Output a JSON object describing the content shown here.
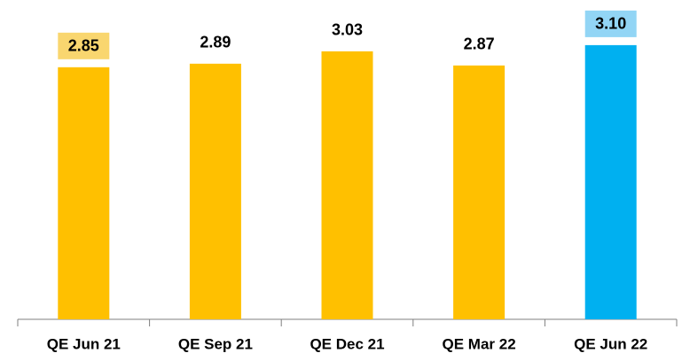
{
  "chart_data": {
    "type": "bar",
    "categories": [
      "QE Jun 21",
      "QE Sep 21",
      "QE Dec 21",
      "QE Mar 22",
      "QE Jun 22"
    ],
    "values": [
      2.85,
      2.89,
      3.03,
      2.87,
      3.1
    ],
    "value_labels": [
      "2.85",
      "2.89",
      "3.03",
      "2.87",
      "3.10"
    ],
    "colors": [
      "#ffc000",
      "#ffc000",
      "#ffc000",
      "#ffc000",
      "#00b0f0"
    ],
    "label_backgrounds": [
      "#f9d66f",
      null,
      null,
      null,
      "#92d5f5"
    ],
    "ylim": [
      0,
      3.5
    ]
  }
}
